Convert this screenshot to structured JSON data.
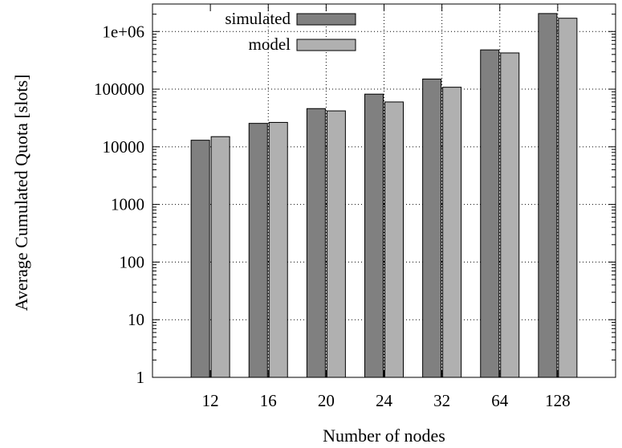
{
  "chart_data": {
    "type": "bar",
    "title": "",
    "xlabel": "Number of nodes",
    "ylabel": "Average Cumulated Quota [slots]",
    "categories": [
      "12",
      "16",
      "20",
      "24",
      "32",
      "64",
      "128"
    ],
    "series": [
      {
        "name": "simulated",
        "values": [
          13000,
          25500,
          46000,
          82000,
          150000,
          480000,
          2050000
        ],
        "color": "#808080"
      },
      {
        "name": "model",
        "values": [
          15000,
          26500,
          42000,
          60000,
          108000,
          425000,
          1700000
        ],
        "color": "#b0b0b0"
      }
    ],
    "yscale": "log",
    "ylim": [
      1,
      3000000
    ],
    "yticks": [
      1,
      10,
      100,
      1000,
      10000,
      100000,
      1000000
    ],
    "ytick_labels": [
      "1",
      "10",
      "100",
      "1000",
      "10000",
      "100000",
      "1e+06"
    ],
    "grid": true,
    "legend_position": "top-left"
  }
}
